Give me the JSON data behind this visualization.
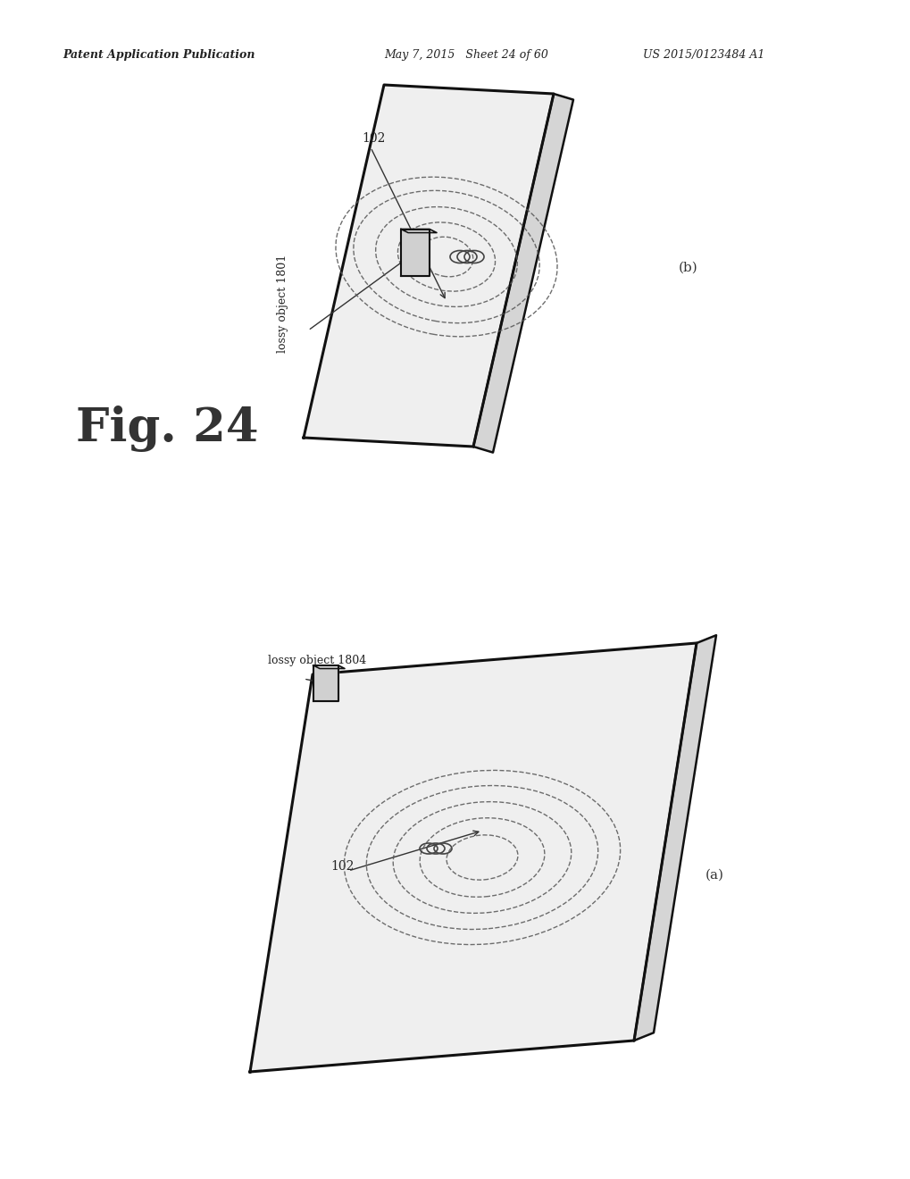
{
  "bg_color": "#ffffff",
  "header_left": "Patent Application Publication",
  "header_mid": "May 7, 2015   Sheet 24 of 60",
  "header_right": "US 2015/0123484 A1",
  "fig_label": "Fig. 24",
  "panel_b_label": "(b)",
  "panel_a_label": "(a)",
  "label_102_top": "102",
  "label_lossy_top": "lossy object 1801",
  "label_102_bot": "102",
  "label_lossy_bot": "lossy object 1804"
}
